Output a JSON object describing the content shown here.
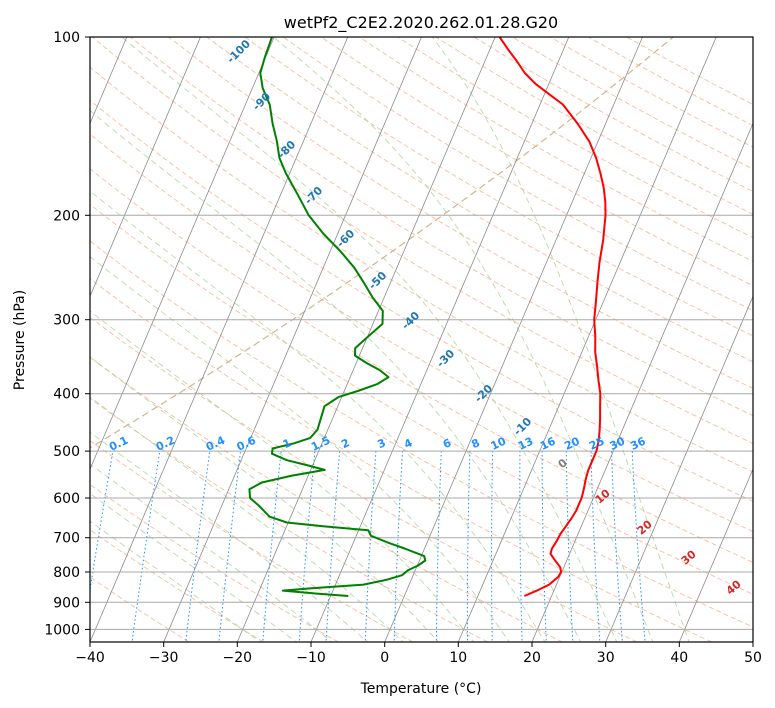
{
  "chart_data": {
    "type": "line",
    "title": "wetPf2_C2E2.2020.262.01.28.G20",
    "xlabel": "Temperature (°C)",
    "ylabel": "Pressure (hPa)",
    "xlim": [
      -40,
      50
    ],
    "ylim": [
      1050,
      100
    ],
    "y_scale": "log",
    "skew": 35,
    "x_ticks": [
      -40,
      -30,
      -20,
      -10,
      0,
      10,
      20,
      30,
      40,
      50
    ],
    "x_tick_labels": [
      "−40",
      "−30",
      "−20",
      "−10",
      "0",
      "10",
      "20",
      "30",
      "40",
      "50"
    ],
    "y_ticks": [
      100,
      200,
      300,
      400,
      500,
      600,
      700,
      800,
      900,
      1000
    ],
    "y_tick_labels": [
      "100",
      "200",
      "300",
      "400",
      "500",
      "600",
      "700",
      "800",
      "900",
      "1000"
    ],
    "grid": true,
    "series": [
      {
        "color": "#ff0000",
        "points": [
          [
            878,
            16.3
          ],
          [
            860,
            17.7
          ],
          [
            840,
            19.0
          ],
          [
            815,
            19.8
          ],
          [
            800,
            19.9
          ],
          [
            785,
            19.5
          ],
          [
            770,
            18.7
          ],
          [
            755,
            17.9
          ],
          [
            745,
            17.4
          ],
          [
            730,
            17.3
          ],
          [
            710,
            17.5
          ],
          [
            690,
            17.6
          ],
          [
            670,
            17.9
          ],
          [
            650,
            18.2
          ],
          [
            630,
            18.4
          ],
          [
            600,
            18.4
          ],
          [
            580,
            18.2
          ],
          [
            560,
            17.9
          ],
          [
            540,
            17.7
          ],
          [
            520,
            17.7
          ],
          [
            500,
            17.7
          ],
          [
            480,
            17.4
          ],
          [
            460,
            16.9
          ],
          [
            440,
            16.3
          ],
          [
            420,
            15.6
          ],
          [
            400,
            14.9
          ],
          [
            380,
            13.9
          ],
          [
            360,
            12.9
          ],
          [
            340,
            11.8
          ],
          [
            320,
            10.9
          ],
          [
            300,
            9.8
          ],
          [
            280,
            9.0
          ],
          [
            260,
            8.1
          ],
          [
            240,
            7.2
          ],
          [
            220,
            6.4
          ],
          [
            200,
            5.3
          ],
          [
            190,
            4.5
          ],
          [
            180,
            3.5
          ],
          [
            170,
            2.2
          ],
          [
            160,
            0.7
          ],
          [
            150,
            -1.2
          ],
          [
            140,
            -3.8
          ],
          [
            130,
            -6.9
          ],
          [
            125,
            -9.3
          ],
          [
            120,
            -11.8
          ],
          [
            115,
            -13.9
          ],
          [
            110,
            -15.6
          ],
          [
            105,
            -17.5
          ],
          [
            100,
            -19.4
          ]
        ]
      },
      {
        "color": "#008000",
        "points": [
          [
            878,
            -7.6
          ],
          [
            870,
            -12.0
          ],
          [
            860,
            -16.8
          ],
          [
            852,
            -13.0
          ],
          [
            840,
            -6.2
          ],
          [
            825,
            -3.4
          ],
          [
            810,
            -1.5
          ],
          [
            795,
            -1.0
          ],
          [
            780,
            0.1
          ],
          [
            765,
            0.8
          ],
          [
            752,
            0.4
          ],
          [
            742,
            -1.0
          ],
          [
            730,
            -2.7
          ],
          [
            715,
            -5.1
          ],
          [
            695,
            -8.0
          ],
          [
            680,
            -8.7
          ],
          [
            670,
            -14.9
          ],
          [
            660,
            -20.2
          ],
          [
            645,
            -22.9
          ],
          [
            620,
            -24.8
          ],
          [
            600,
            -26.6
          ],
          [
            580,
            -27.2
          ],
          [
            565,
            -25.9
          ],
          [
            550,
            -22.2
          ],
          [
            538,
            -18.1
          ],
          [
            528,
            -20.8
          ],
          [
            518,
            -23.8
          ],
          [
            505,
            -26.2
          ],
          [
            495,
            -26.4
          ],
          [
            485,
            -23.8
          ],
          [
            475,
            -21.9
          ],
          [
            460,
            -21.4
          ],
          [
            440,
            -21.6
          ],
          [
            420,
            -21.8
          ],
          [
            405,
            -20.4
          ],
          [
            395,
            -18.0
          ],
          [
            385,
            -15.9
          ],
          [
            375,
            -14.8
          ],
          [
            365,
            -16.4
          ],
          [
            355,
            -18.6
          ],
          [
            345,
            -20.6
          ],
          [
            335,
            -21.0
          ],
          [
            320,
            -19.9
          ],
          [
            305,
            -18.7
          ],
          [
            290,
            -19.4
          ],
          [
            275,
            -21.6
          ],
          [
            260,
            -23.6
          ],
          [
            245,
            -25.8
          ],
          [
            230,
            -28.6
          ],
          [
            215,
            -31.9
          ],
          [
            200,
            -35.0
          ],
          [
            185,
            -37.6
          ],
          [
            170,
            -40.5
          ],
          [
            160,
            -42.3
          ],
          [
            150,
            -43.6
          ],
          [
            140,
            -45.2
          ],
          [
            130,
            -46.7
          ],
          [
            122,
            -48.6
          ],
          [
            115,
            -49.8
          ],
          [
            108,
            -50.1
          ],
          [
            100,
            -50.3
          ]
        ]
      }
    ],
    "dry_adiabat_labels": [
      "-100",
      "-90",
      "-80",
      "-70",
      "-60",
      "-50",
      "-40",
      "-30",
      "-20",
      "-10"
    ],
    "mixing_ratio_labels": [
      "0.1",
      "0.2",
      "0.4",
      "0.6",
      "1",
      "1.5",
      "2",
      "3",
      "4",
      "6",
      "8",
      "10",
      "13",
      "16",
      "20",
      "25",
      "30",
      "36"
    ],
    "moist_adiabat_labels": [
      "0",
      "10",
      "20",
      "30",
      "40"
    ]
  }
}
